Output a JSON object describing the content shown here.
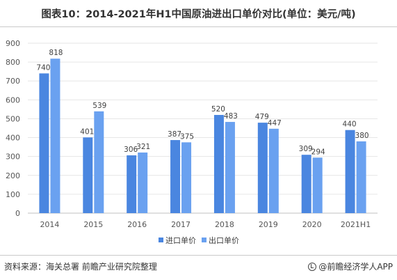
{
  "title": "图表10：2014-2021年H1中国原油进出口单价对比(单位：美元/吨)",
  "source": "资料来源：海关总署 前瞻产业研究院整理",
  "brand": "@前瞻经济学人APP",
  "colors": {
    "import": "#4a86e0",
    "export": "#6aa1f0",
    "axis_text": "#555555",
    "grid": "#e6e6e6",
    "label": "#404040"
  },
  "chart_data": {
    "type": "bar",
    "categories": [
      "2014",
      "2015",
      "2016",
      "2017",
      "2018",
      "2019",
      "2020",
      "2021H1"
    ],
    "series": [
      {
        "name": "进口单价",
        "values": [
          740,
          401,
          306,
          387,
          520,
          479,
          309,
          440
        ]
      },
      {
        "name": "出口单价",
        "values": [
          818,
          539,
          321,
          375,
          483,
          447,
          294,
          380
        ]
      }
    ],
    "yticks": [
      "0",
      "100",
      "200",
      "300",
      "400",
      "500",
      "600",
      "700",
      "800",
      "900"
    ],
    "ylim": [
      0,
      900
    ],
    "grid": true,
    "legend": "bottom-center"
  }
}
